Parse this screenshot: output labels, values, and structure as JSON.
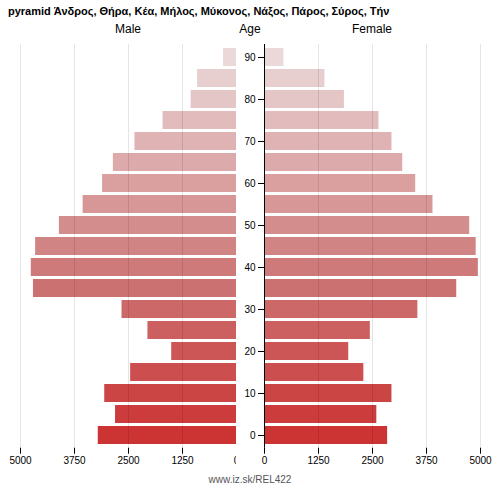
{
  "chart_data": {
    "type": "bar",
    "orientation": "horizontal",
    "title": "pyramid Άνδρος, Θήρα, Κέα, Μήλος, Μύκονος, Νάξος, Πάρος, Σύρος, Τήν",
    "ylabel": "Age",
    "annotations": [
      "www.iz.sk/REL422"
    ],
    "categories": [
      "0",
      null,
      "10",
      null,
      "20",
      null,
      "30",
      null,
      "40",
      null,
      "50",
      null,
      "60",
      null,
      "70",
      null,
      "80",
      null,
      "90"
    ],
    "colors": [
      "#cc3333",
      "#cc3c3c",
      "#cc4545",
      "#cc4e4e",
      "#cc5656",
      "#cc5f5f",
      "#cc6868",
      "#cc7171",
      "#ce7a7a",
      "#d18484",
      "#d48d8d",
      "#d79797",
      "#daa0a0",
      "#dcaaaa",
      "#dfb3b3",
      "#e2bcbc",
      "#e5c6c6",
      "#e8cfcf",
      "#ebd9d9"
    ],
    "series": [
      {
        "name": "Male",
        "values": [
          3200,
          2800,
          3050,
          2450,
          1500,
          2050,
          2650,
          4700,
          4750,
          4650,
          4100,
          3550,
          3100,
          2850,
          2350,
          1700,
          1050,
          900,
          300
        ]
      },
      {
        "name": "Female",
        "values": [
          2850,
          2600,
          2950,
          2300,
          1950,
          2450,
          3550,
          4450,
          4950,
          4900,
          4750,
          3900,
          3500,
          3200,
          2950,
          2650,
          1850,
          1400,
          450
        ]
      }
    ],
    "xlim": [
      0,
      5000
    ],
    "xticks": [
      0,
      1250,
      2500,
      3750,
      5000
    ],
    "grid": true
  }
}
